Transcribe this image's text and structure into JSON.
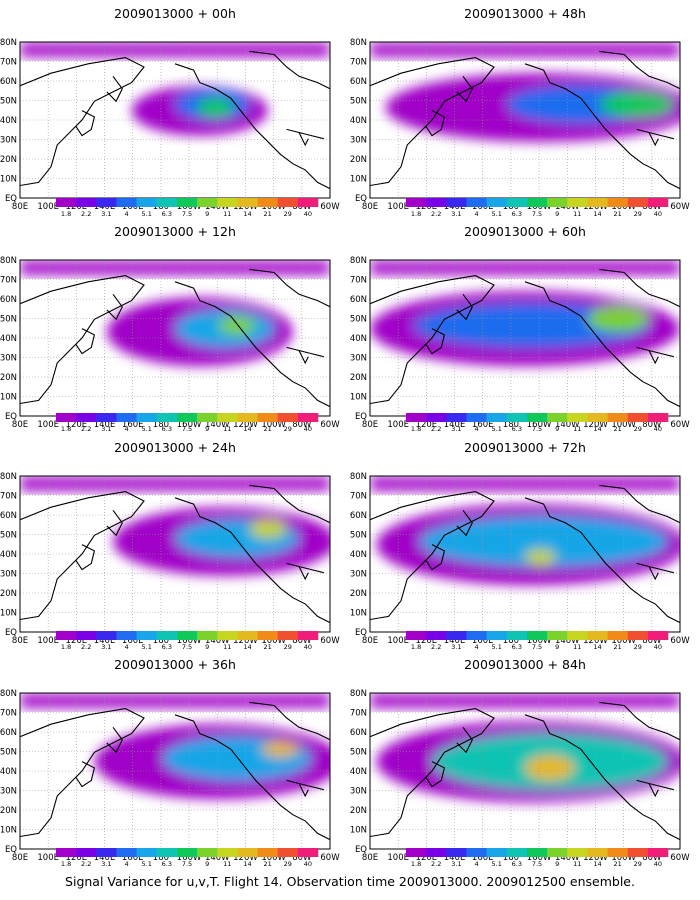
{
  "caption": "Signal Variance for u,v,T. Flight 14. Observation time 2009013000. 2009012500 ensemble.",
  "panels": [
    {
      "title": "2009013000 + 00h",
      "lead": "00h"
    },
    {
      "title": "2009013000 + 48h",
      "lead": "48h"
    },
    {
      "title": "2009013000 + 12h",
      "lead": "12h"
    },
    {
      "title": "2009013000 + 60h",
      "lead": "60h"
    },
    {
      "title": "2009013000 + 24h",
      "lead": "24h"
    },
    {
      "title": "2009013000 + 72h",
      "lead": "72h"
    },
    {
      "title": "2009013000 + 36h",
      "lead": "36h"
    },
    {
      "title": "2009013000 + 84h",
      "lead": "84h"
    }
  ],
  "lat_labels": [
    "80N",
    "70N",
    "60N",
    "50N",
    "40N",
    "30N",
    "20N",
    "10N",
    "EQ"
  ],
  "lon_labels": [
    "80E",
    "100E",
    "120E",
    "140E",
    "160E",
    "180",
    "160W",
    "140W",
    "120W",
    "100W",
    "80W",
    "60W"
  ],
  "colorbar": {
    "labels": [
      "1.8",
      "2.2",
      "3.1",
      "4",
      "5.1",
      "6.3",
      "7.5",
      "9",
      "11",
      "14",
      "21",
      "29",
      "40"
    ],
    "colors": [
      "#a000c8",
      "#7a00e6",
      "#3a28f0",
      "#1f6cf0",
      "#18a6e8",
      "#10c4b4",
      "#10c85a",
      "#7ad22a",
      "#c6d620",
      "#e6b820",
      "#f08a18",
      "#f05030",
      "#f01e78"
    ]
  }
}
